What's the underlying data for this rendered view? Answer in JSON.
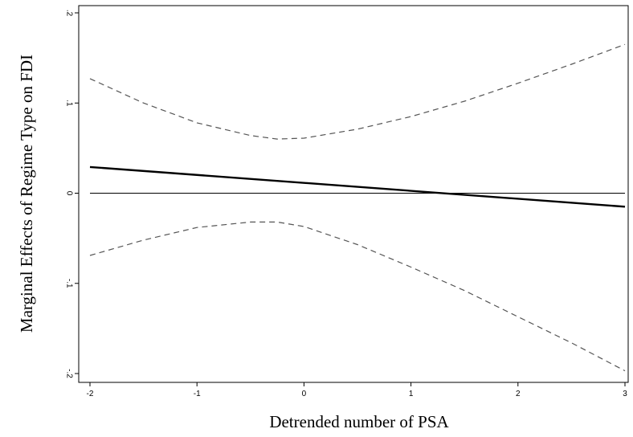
{
  "chart_data": {
    "type": "line",
    "title": "",
    "xlabel": "Detrended number of PSA",
    "ylabel": "Marginal Effects of Regime Type on FDI",
    "xlim": [
      -2,
      3
    ],
    "ylim": [
      -0.2,
      0.2
    ],
    "x_ticks": [
      -2,
      -1,
      0,
      1,
      2,
      3
    ],
    "x_tick_labels": [
      "-2",
      "-1",
      "0",
      "1",
      "2",
      "3"
    ],
    "y_ticks": [
      -0.2,
      -0.1,
      0,
      0.1,
      0.2
    ],
    "y_tick_labels": [
      "-.2",
      "-.1",
      "0",
      ".1",
      ".2"
    ],
    "grid": false,
    "reference_line": {
      "y": 0
    },
    "series": [
      {
        "style": "solid-thick",
        "x": [
          -2,
          3
        ],
        "values": [
          0.029,
          -0.015
        ]
      },
      {
        "style": "dashed",
        "x": [
          -2,
          -1.5,
          -1,
          -0.5,
          -0.25,
          0,
          0.5,
          1,
          1.5,
          2,
          2.5,
          3
        ],
        "values": [
          0.127,
          0.1,
          0.078,
          0.064,
          0.06,
          0.061,
          0.071,
          0.085,
          0.102,
          0.122,
          0.143,
          0.165
        ]
      },
      {
        "style": "dashed",
        "x": [
          -2,
          -1.5,
          -1,
          -0.5,
          -0.25,
          0,
          0.5,
          1,
          1.5,
          2,
          2.5,
          3
        ],
        "values": [
          -0.069,
          -0.052,
          -0.038,
          -0.032,
          -0.032,
          -0.037,
          -0.057,
          -0.082,
          -0.108,
          -0.137,
          -0.166,
          -0.197
        ]
      }
    ]
  }
}
